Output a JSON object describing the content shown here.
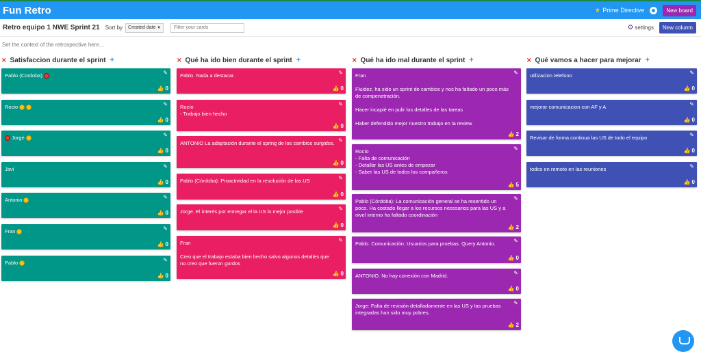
{
  "app_title": "Fun Retro",
  "header": {
    "prime_directive": "Prime Directive",
    "new_board": "New board"
  },
  "toolbar": {
    "board_name": "Retro equipo 1 NWE Sprint 21",
    "sort_label": "Sort by",
    "sort_value": "Created date",
    "filter_placeholder": "Filter your cards",
    "settings": "settings",
    "new_column": "New column"
  },
  "context_placeholder": "Set the context of the retrospective here...",
  "colors": {
    "green": "#009688",
    "pink": "#e91e63",
    "purple": "#9c27b0",
    "indigo": "#3f51b5",
    "header": "#2196f3"
  },
  "columns": [
    {
      "title": "Satisfaccion durante el sprint",
      "cards": [
        {
          "text": "Pablo (Cordoba)",
          "likes": "0",
          "emojis": [
            "red"
          ]
        },
        {
          "text": "Rocio",
          "likes": "0",
          "emojis": [
            "yellow",
            "yellow"
          ]
        },
        {
          "text": "Jorge",
          "likes": "0",
          "emojis": [
            "yellow"
          ],
          "lead_emoji": "red"
        },
        {
          "text": "Javi",
          "likes": "0",
          "emojis": []
        },
        {
          "text": "Antonio",
          "likes": "0",
          "emojis": [
            "yellow"
          ]
        },
        {
          "text": "Fran",
          "likes": "0",
          "emojis": [
            "yellow"
          ]
        },
        {
          "text": "Pablo",
          "likes": "0",
          "emojis": [
            "yellow"
          ]
        }
      ]
    },
    {
      "title": "Qué ha ido bien durante el sprint",
      "cards": [
        {
          "text": "Pablo. Nada a destacar.",
          "likes": "0"
        },
        {
          "text": "Rocío\n- Trabajo bien hecho",
          "likes": "0"
        },
        {
          "text": "ANTONIO La adaptación durante el spring de los cambios surgidos.",
          "likes": "0"
        },
        {
          "text": "Pablo (Córdoba): Proactividad en la resolución de las US",
          "likes": "0"
        },
        {
          "text": "Jorge. El interés por entregar el la US lo mejor posible",
          "likes": "0"
        },
        {
          "text": "Fran\n\nCreo que el trabajo estaba bien hecho salvo algunos detalles que no creo que fueron gordos",
          "likes": "0"
        }
      ]
    },
    {
      "title": "Qué ha ido mal durante el sprint",
      "cards": [
        {
          "text": "Fran\n\nFluidez, ha sido un sprint de cambios y nos ha faltado un poco más de compenetración.\n\nHacer incapié en pulir los detalles de las tareas\n\nHaber defendido mejor nuestro trabajo en la review",
          "likes": "2"
        },
        {
          "text": "Rocío\n- Falta de comunicación\n- Detallar las US antes de empezar\n- Saber las US de todos los compañeros",
          "likes": "5"
        },
        {
          "text": "Pablo (Córdoba): La comunicación general se ha resentido un poco. Ha costado llegar a los recursos necesarios para las US y a nivel interno ha faltado coordinación",
          "likes": "2"
        },
        {
          "text": "Pablo. Comunicación. Usuarios para pruebas. Query Antonio.",
          "likes": "0"
        },
        {
          "text": "ANTONIO. No hay conexión con Madrid.",
          "likes": "0"
        },
        {
          "text": "Jorge: Falta de revisión detalladamente en las US y las pruebas integradas han sido muy pobres.",
          "likes": "2"
        }
      ]
    },
    {
      "title": "Qué vamos a hacer para mejorar",
      "cards": [
        {
          "text": "utilizacion telefono",
          "likes": "0"
        },
        {
          "text": "mejorar comunicacion con AF y A",
          "likes": "0"
        },
        {
          "text": "Revisar de forma continua las US de todo el equipo",
          "likes": "0"
        },
        {
          "text": "todos en remoto en las reuniones",
          "likes": "0"
        }
      ]
    }
  ]
}
